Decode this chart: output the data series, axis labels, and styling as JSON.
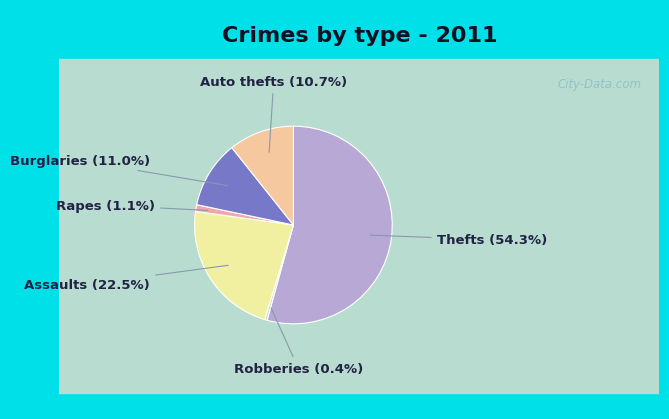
{
  "title": "Crimes by type - 2011",
  "slices": [
    {
      "label": "Thefts (54.3%)",
      "value": 54.3,
      "color": "#b8a8d5"
    },
    {
      "label": "Robberies (0.4%)",
      "value": 0.4,
      "color": "#c8dfc8"
    },
    {
      "label": "Assaults (22.5%)",
      "value": 22.5,
      "color": "#f0f0a0"
    },
    {
      "label": "Rapes (1.1%)",
      "value": 1.1,
      "color": "#f0a8a8"
    },
    {
      "label": "Burglaries (11.0%)",
      "value": 11.0,
      "color": "#7878c8"
    },
    {
      "label": "Auto thefts (10.7%)",
      "value": 10.7,
      "color": "#f5c8a0"
    }
  ],
  "title_fontsize": 16,
  "label_fontsize": 9.5,
  "bg_cyan": "#00e0e8",
  "bg_green": "#b8ddd0",
  "watermark": "City-Data.com"
}
